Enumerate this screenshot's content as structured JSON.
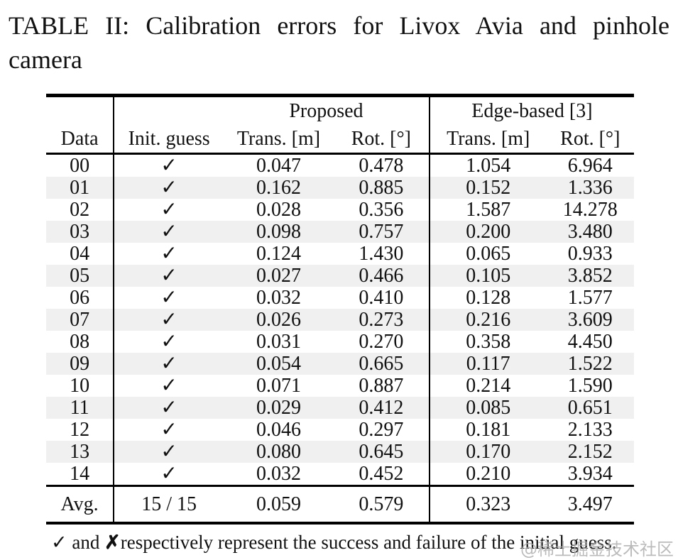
{
  "caption": {
    "line1": "TABLE II: Calibration errors for Livox Avia and pinhole",
    "line2": "camera"
  },
  "table": {
    "group_headers": {
      "proposed": "Proposed",
      "edge_based": "Edge-based [3]"
    },
    "columns": [
      "Data",
      "Init. guess",
      "Trans. [m]",
      "Rot. [°]",
      "Trans. [m]",
      "Rot. [°]"
    ],
    "rows": [
      [
        "00",
        "✓",
        "0.047",
        "0.478",
        "1.054",
        "6.964"
      ],
      [
        "01",
        "✓",
        "0.162",
        "0.885",
        "0.152",
        "1.336"
      ],
      [
        "02",
        "✓",
        "0.028",
        "0.356",
        "1.587",
        "14.278"
      ],
      [
        "03",
        "✓",
        "0.098",
        "0.757",
        "0.200",
        "3.480"
      ],
      [
        "04",
        "✓",
        "0.124",
        "1.430",
        "0.065",
        "0.933"
      ],
      [
        "05",
        "✓",
        "0.027",
        "0.466",
        "0.105",
        "3.852"
      ],
      [
        "06",
        "✓",
        "0.032",
        "0.410",
        "0.128",
        "1.577"
      ],
      [
        "07",
        "✓",
        "0.026",
        "0.273",
        "0.216",
        "3.609"
      ],
      [
        "08",
        "✓",
        "0.031",
        "0.270",
        "0.358",
        "4.450"
      ],
      [
        "09",
        "✓",
        "0.054",
        "0.665",
        "0.117",
        "1.522"
      ],
      [
        "10",
        "✓",
        "0.071",
        "0.887",
        "0.214",
        "1.590"
      ],
      [
        "11",
        "✓",
        "0.029",
        "0.412",
        "0.085",
        "0.651"
      ],
      [
        "12",
        "✓",
        "0.046",
        "0.297",
        "0.181",
        "2.133"
      ],
      [
        "13",
        "✓",
        "0.080",
        "0.645",
        "0.170",
        "2.152"
      ],
      [
        "14",
        "✓",
        "0.032",
        "0.452",
        "0.210",
        "3.934"
      ]
    ],
    "avg_row": [
      "Avg.",
      "15 / 15",
      "0.059",
      "0.579",
      "0.323",
      "3.497"
    ],
    "stripe_color": "#f0f0f0",
    "rule_color": "#000000"
  },
  "footnote": {
    "check": "✓",
    "middle": " and ",
    "cross": "✗",
    "rest": "respectively represent the success and failure of the initial guess."
  },
  "watermark": "@稀土掘金技术社区"
}
